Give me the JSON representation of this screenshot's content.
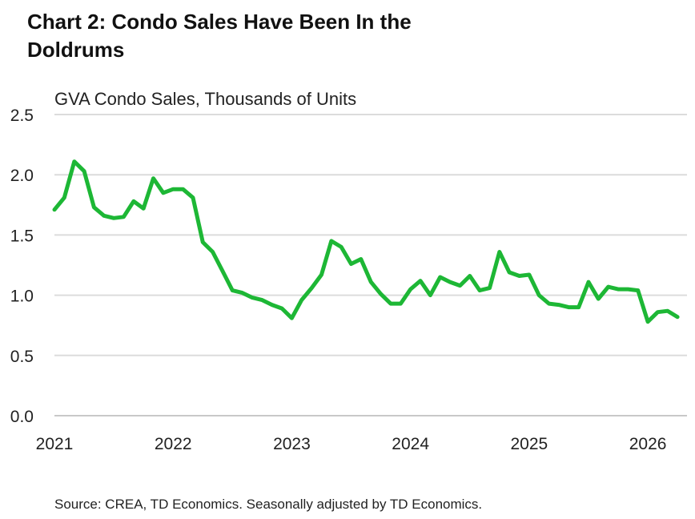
{
  "title": "Chart 2: Condo Sales Have Been In the Doldrums",
  "footnote": "Source: CREA, TD Economics. Seasonally adjusted by TD Economics.",
  "chart_data": {
    "type": "line",
    "title": "Chart 2: Condo Sales Have Been In the Doldrums",
    "ylabel": "GVA Condo Sales, Thousands of Units",
    "xlabel": "",
    "ylim": [
      0,
      2.5
    ],
    "xlim": [
      2021.0,
      2026.33
    ],
    "yticks": [
      "0.0",
      "0.5",
      "1.0",
      "1.5",
      "2.0",
      "2.5"
    ],
    "xticks": [
      "2021",
      "2022",
      "2023",
      "2024",
      "2025",
      "2026"
    ],
    "grid": "horizontal",
    "line_color": "#1db735",
    "x": [
      2021.0,
      2021.083,
      2021.167,
      2021.25,
      2021.333,
      2021.417,
      2021.5,
      2021.583,
      2021.667,
      2021.75,
      2021.833,
      2021.917,
      2022.0,
      2022.083,
      2022.167,
      2022.25,
      2022.333,
      2022.417,
      2022.5,
      2022.583,
      2022.667,
      2022.75,
      2022.833,
      2022.917,
      2023.0,
      2023.083,
      2023.167,
      2023.25,
      2023.333,
      2023.417,
      2023.5,
      2023.583,
      2023.667,
      2023.75,
      2023.833,
      2023.917,
      2024.0,
      2024.083,
      2024.167,
      2024.25,
      2024.333,
      2024.417,
      2024.5,
      2024.583,
      2024.667,
      2024.75,
      2024.833,
      2024.917,
      2025.0,
      2025.083,
      2025.167,
      2025.25,
      2025.333,
      2025.417,
      2025.5,
      2025.583,
      2025.667,
      2025.75,
      2025.833,
      2025.917,
      2026.0,
      2026.083,
      2026.167,
      2026.25
    ],
    "values": [
      1.71,
      1.81,
      2.11,
      2.03,
      1.73,
      1.66,
      1.64,
      1.65,
      1.78,
      1.72,
      1.97,
      1.85,
      1.88,
      1.88,
      1.81,
      1.44,
      1.36,
      1.2,
      1.04,
      1.02,
      0.98,
      0.96,
      0.92,
      0.89,
      0.81,
      0.96,
      1.06,
      1.17,
      1.45,
      1.4,
      1.26,
      1.3,
      1.11,
      1.01,
      0.93,
      0.93,
      1.05,
      1.12,
      1.0,
      1.15,
      1.11,
      1.08,
      1.16,
      1.04,
      1.06,
      1.36,
      1.19,
      1.16,
      1.17,
      1.0,
      0.93,
      0.92,
      0.9,
      0.9,
      1.11,
      0.97,
      1.07,
      1.05,
      1.05,
      1.04,
      0.78,
      0.86,
      0.87,
      0.82
    ]
  }
}
